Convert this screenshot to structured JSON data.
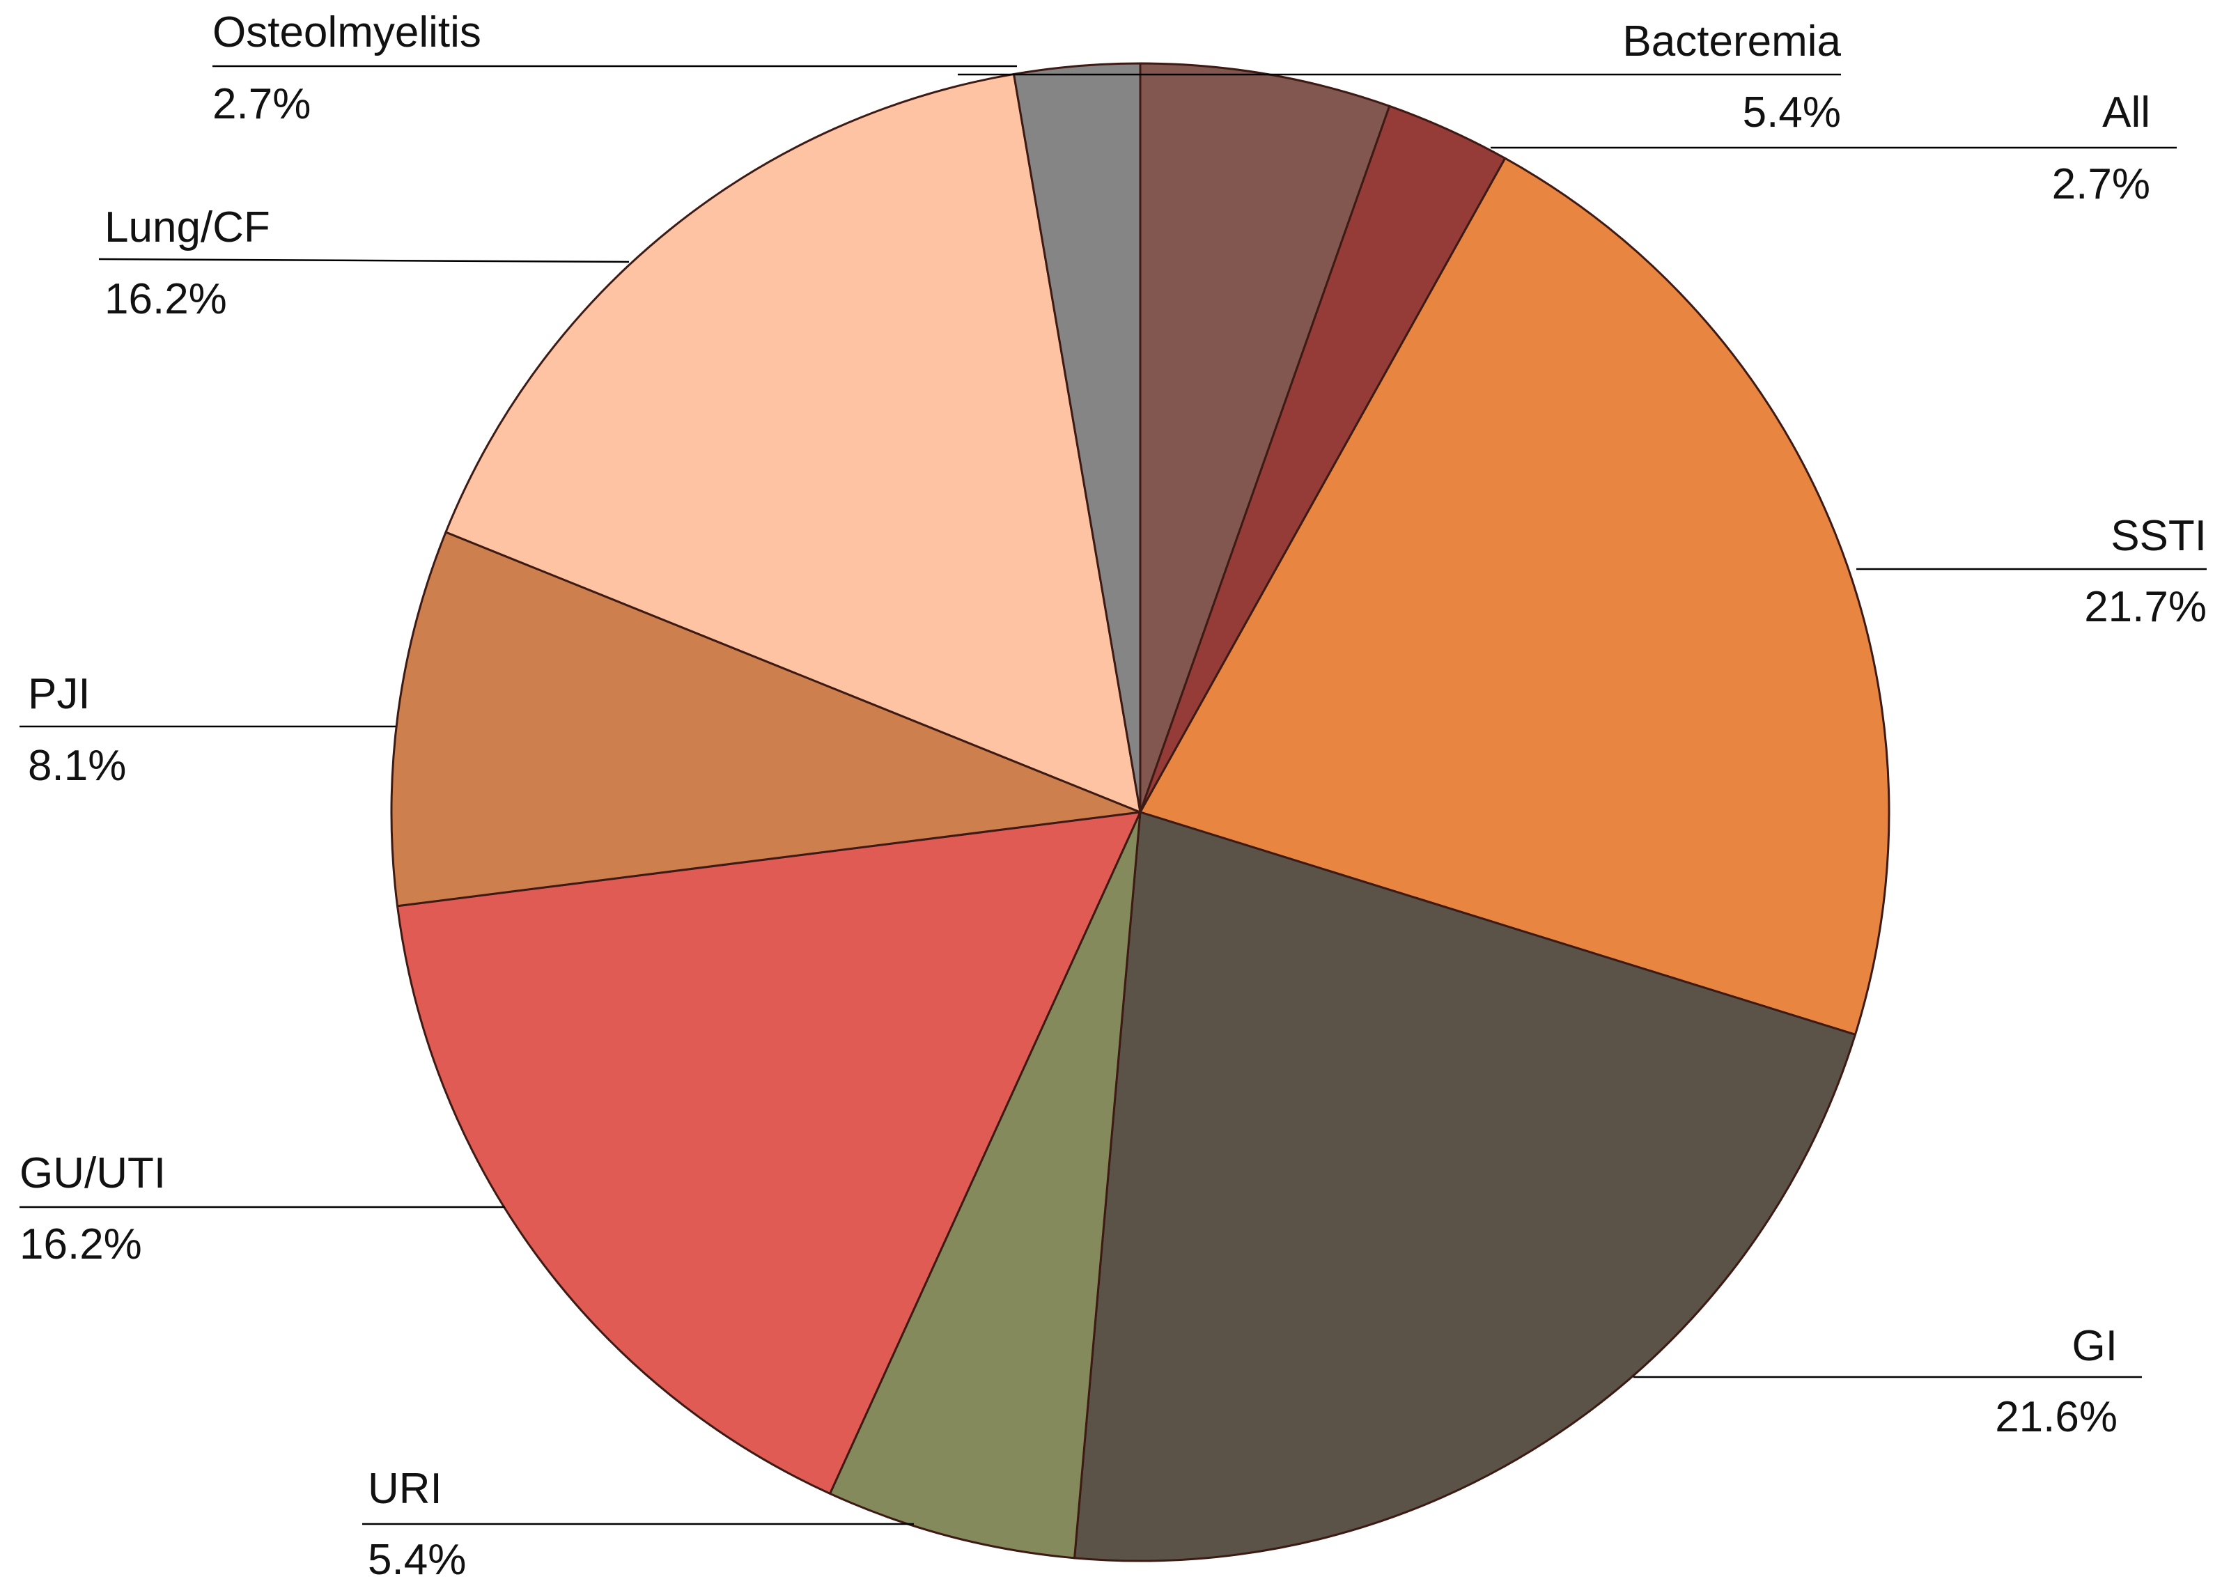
{
  "chart_data": {
    "type": "pie",
    "start_angle_deg": 0,
    "direction": "clockwise",
    "slices": [
      {
        "label": "Bacteremia",
        "value": 5.4,
        "value_label": "5.4%",
        "color": "#82574f"
      },
      {
        "label": "All",
        "value": 2.7,
        "value_label": "2.7%",
        "color": "#953c39"
      },
      {
        "label": "SSTI",
        "value": 21.7,
        "value_label": "21.7%",
        "color": "#e88541"
      },
      {
        "label": "GI",
        "value": 21.6,
        "value_label": "21.6%",
        "color": "#5b5347"
      },
      {
        "label": "URI",
        "value": 5.4,
        "value_label": "5.4%",
        "color": "#848a5b"
      },
      {
        "label": "GU/UTI",
        "value": 16.2,
        "value_label": "16.2%",
        "color": "#e15b55"
      },
      {
        "label": "PJI",
        "value": 8.1,
        "value_label": "8.1%",
        "color": "#cd7f4e"
      },
      {
        "label": "Lung/CF",
        "value": 16.2,
        "value_label": "16.2%",
        "color": "#fdc3a2"
      },
      {
        "label": "Osteolmyelitis",
        "value": 2.7,
        "value_label": "2.7%",
        "color": "#858585"
      }
    ],
    "legend": "none"
  }
}
